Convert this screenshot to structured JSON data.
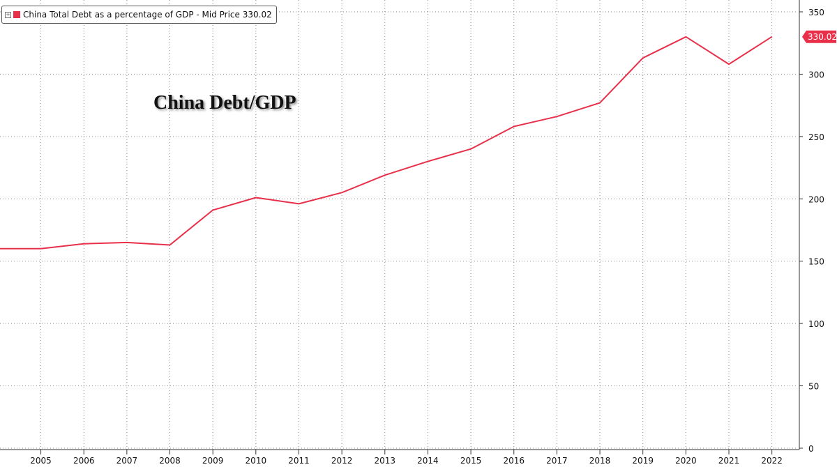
{
  "legend": {
    "expand_symbol": "+",
    "label": "China Total Debt as a percentage of GDP - Mid Price 330.02"
  },
  "annotation": "China Debt/GDP",
  "colors": {
    "series": "#e8304a",
    "grid": "#888888",
    "axis_text": "#111111",
    "last_value_bg": "#e8304a"
  },
  "chart_data": {
    "type": "line",
    "title": "",
    "xlabel": "",
    "ylabel": "",
    "grid": true,
    "y_axis_position": "right",
    "legend_position": "top-left",
    "xlim": [
      2004.05,
      2022.33
    ],
    "ylim": [
      0,
      350
    ],
    "x_ticks": [
      "2005",
      "2006",
      "2007",
      "2008",
      "2009",
      "2010",
      "2011",
      "2012",
      "2013",
      "2014",
      "2015",
      "2016",
      "2017",
      "2018",
      "2019",
      "2020",
      "2021",
      "2022"
    ],
    "x_tick_values": [
      2005,
      2006,
      2007,
      2008,
      2009,
      2010,
      2011,
      2012,
      2013,
      2014,
      2015,
      2016,
      2017,
      2018,
      2019,
      2020,
      2021,
      2022
    ],
    "y_ticks": [
      0,
      50,
      100,
      150,
      200,
      250,
      300,
      350
    ],
    "series": [
      {
        "name": "China Total Debt as a percentage of GDP",
        "x": [
          2004.05,
          2005.0,
          2006.0,
          2007.0,
          2008.0,
          2009.0,
          2010.0,
          2011.0,
          2012.0,
          2013.0,
          2014.0,
          2015.0,
          2016.0,
          2017.0,
          2018.0,
          2019.0,
          2020.0,
          2021.0,
          2022.0
        ],
        "values": [
          160,
          160,
          164,
          165,
          163,
          191,
          201,
          196,
          205,
          219,
          230,
          240,
          258,
          266,
          277,
          313,
          330,
          308,
          330.02
        ]
      }
    ],
    "last_value_label": "330.02"
  }
}
